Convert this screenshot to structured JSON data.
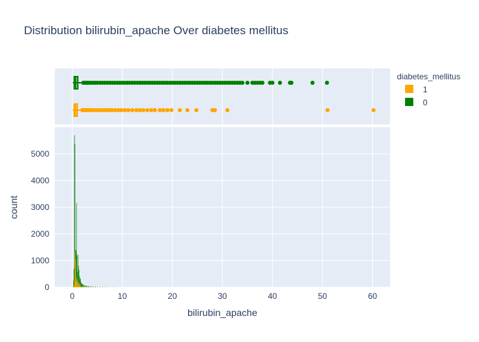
{
  "chart_data": {
    "type": "histogram",
    "title": "Distribution bilirubin_apache Over diabetes mellitus",
    "xlabel": "bilirubin_apache",
    "ylabel": "count",
    "xlim": [
      -3.5,
      63.5
    ],
    "ylim": [
      0,
      6000
    ],
    "x_ticks": [
      0,
      10,
      20,
      30,
      40,
      50,
      60
    ],
    "y_ticks": [
      0,
      1000,
      2000,
      3000,
      4000,
      5000
    ],
    "grid": true,
    "legend": {
      "title": "diabetes_mellitus",
      "placement": "top-right"
    },
    "colors": {
      "plot_bg": "#e5ecf6",
      "series_1": "#ffa500",
      "series_0": "#008000"
    },
    "bin_width": 0.1,
    "series": [
      {
        "name": "1",
        "color": "#ffa500",
        "histogram": {
          "bins": [
            0.3,
            0.4,
            0.5,
            0.6,
            0.7,
            0.8,
            0.9,
            1.0,
            1.1,
            1.2,
            1.3,
            1.4,
            1.5,
            1.6,
            1.8,
            2.0,
            2.2,
            2.5,
            3.0,
            3.5,
            4.0
          ],
          "counts": [
            60,
            250,
            1330,
            1050,
            400,
            200,
            310,
            240,
            90,
            170,
            160,
            60,
            110,
            50,
            40,
            60,
            30,
            25,
            15,
            10,
            8
          ]
        },
        "box": {
          "q1": 0.4,
          "median": 0.6,
          "q3": 1.0,
          "lowerfence": 0.1,
          "upperfence": 1.9,
          "outliers": [
            2.0,
            2.2,
            2.5,
            2.8,
            3.0,
            3.3,
            3.6,
            4.0,
            4.5,
            5.0,
            5.5,
            6.0,
            6.5,
            7.0,
            7.5,
            8.0,
            8.6,
            9.2,
            9.8,
            10.5,
            11.2,
            12.0,
            12.8,
            13.5,
            14.2,
            15.0,
            15.8,
            16.5,
            17.5,
            18.2,
            19.0,
            19.8,
            21.5,
            23.0,
            24.8,
            28.0,
            28.5,
            31.0,
            51.0,
            60.2
          ]
        }
      },
      {
        "name": "0",
        "color": "#008000",
        "histogram": {
          "bins": [
            0.2,
            0.3,
            0.4,
            0.5,
            0.6,
            0.7,
            0.8,
            0.9,
            1.0,
            1.1,
            1.2,
            1.3,
            1.4,
            1.5,
            1.6,
            1.7,
            1.8,
            1.9,
            2.0,
            2.1,
            2.2,
            2.4,
            2.6,
            2.8,
            3.0,
            3.2,
            3.5,
            3.8,
            4.2,
            4.6,
            5.0,
            5.5,
            6.0,
            6.5,
            7.0,
            7.5,
            8.0,
            8.5,
            9.0
          ],
          "counts": [
            260,
            700,
            5700,
            5380,
            1400,
            1350,
            3160,
            1200,
            580,
            1220,
            800,
            660,
            420,
            300,
            330,
            200,
            150,
            130,
            120,
            100,
            90,
            80,
            70,
            60,
            50,
            45,
            40,
            35,
            30,
            25,
            22,
            20,
            18,
            15,
            12,
            10,
            8,
            7,
            6
          ]
        },
        "box": {
          "q1": 0.4,
          "median": 0.6,
          "q3": 1.1,
          "lowerfence": 0.1,
          "upperfence": 2.1,
          "outliers": [
            2.2,
            2.5,
            2.8,
            3.1,
            3.4,
            3.8,
            4.2,
            4.6,
            5.0,
            5.5,
            6.0,
            6.5,
            7.0,
            7.5,
            8.0,
            8.5,
            9.0,
            9.5,
            10.0,
            10.5,
            11.0,
            11.5,
            12.0,
            12.5,
            13.0,
            13.5,
            14.0,
            14.5,
            15.0,
            15.5,
            16.0,
            16.5,
            17.0,
            17.5,
            18.0,
            18.5,
            19.0,
            19.5,
            20.0,
            20.5,
            21.0,
            21.5,
            22.0,
            22.5,
            23.0,
            23.5,
            24.0,
            24.5,
            25.0,
            25.5,
            26.0,
            26.5,
            27.0,
            27.5,
            28.0,
            28.5,
            29.0,
            29.5,
            30.0,
            30.5,
            31.0,
            31.5,
            32.0,
            32.5,
            33.0,
            33.5,
            34.0,
            35.0,
            36.0,
            36.5,
            37.0,
            37.5,
            38.0,
            39.5,
            40.0,
            41.5,
            43.5,
            43.8,
            48.0,
            50.9
          ]
        }
      }
    ]
  }
}
